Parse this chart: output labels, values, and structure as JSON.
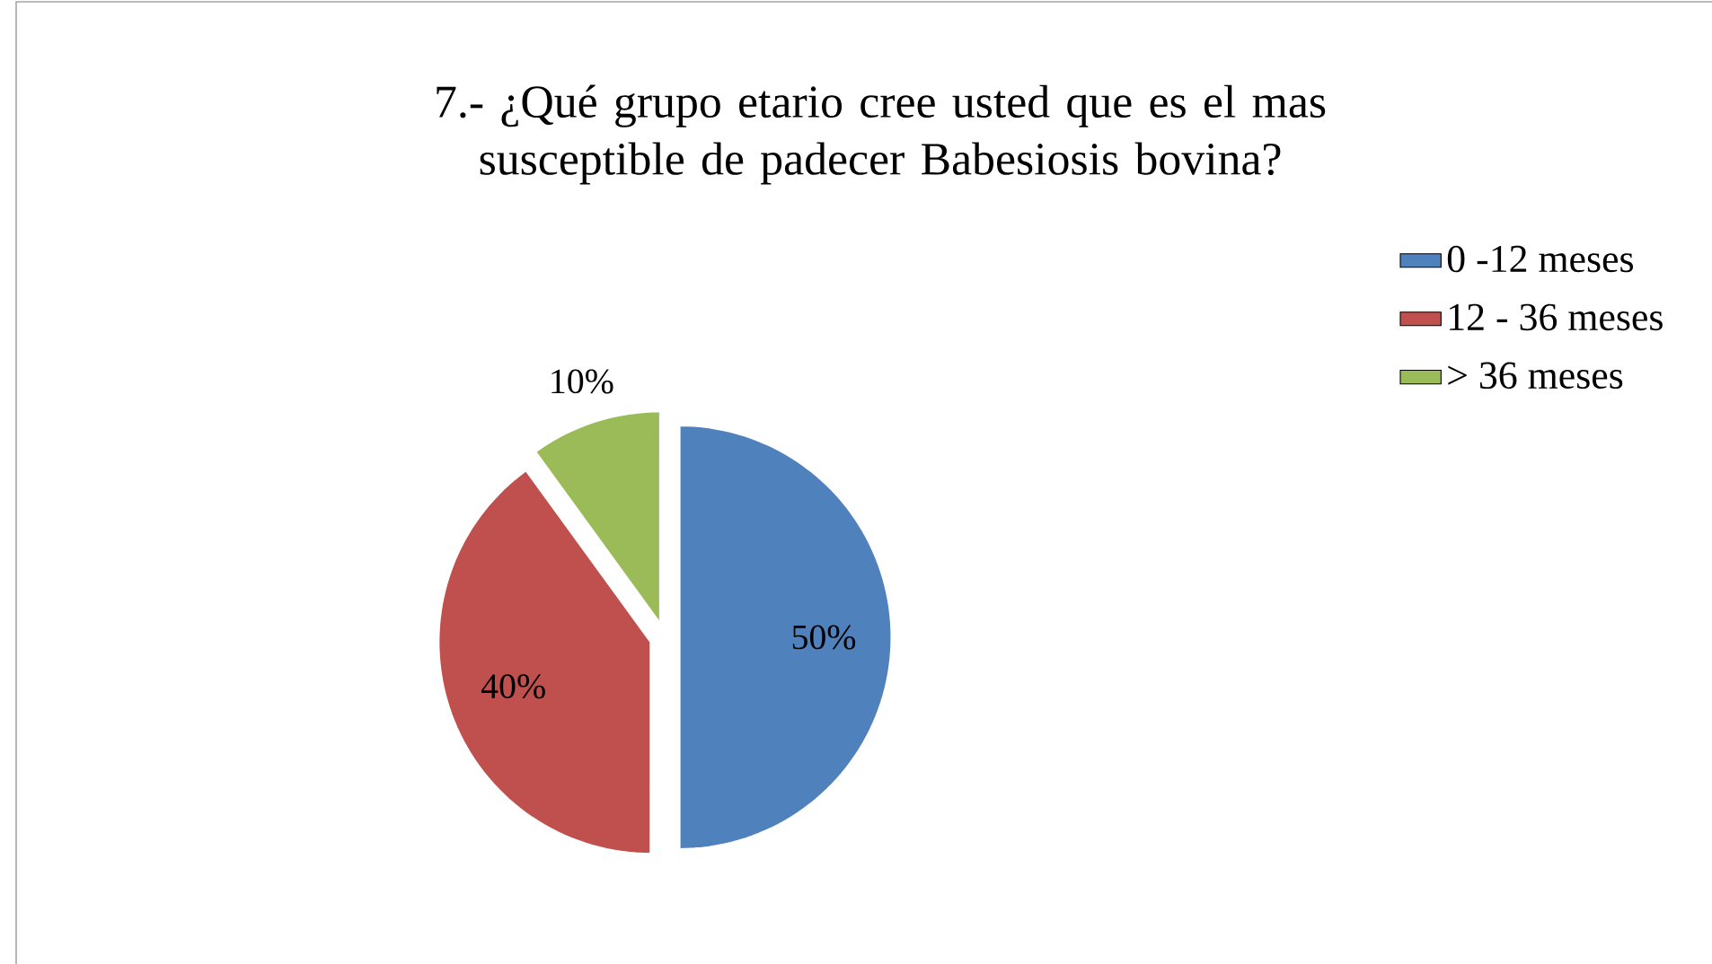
{
  "chart_data": {
    "type": "pie",
    "title": "7.- ¿Qué grupo etario cree usted que es el mas susceptible de padecer Babesiosis bovina?",
    "categories": [
      "0 -12 meses",
      "12 - 36 meses",
      "> 36 meses"
    ],
    "values": [
      50,
      40,
      10
    ],
    "value_labels": [
      "50%",
      "40%",
      "10%"
    ],
    "colors": [
      "#4f81bd",
      "#c0504d",
      "#9bbb59"
    ],
    "legend": "right"
  }
}
